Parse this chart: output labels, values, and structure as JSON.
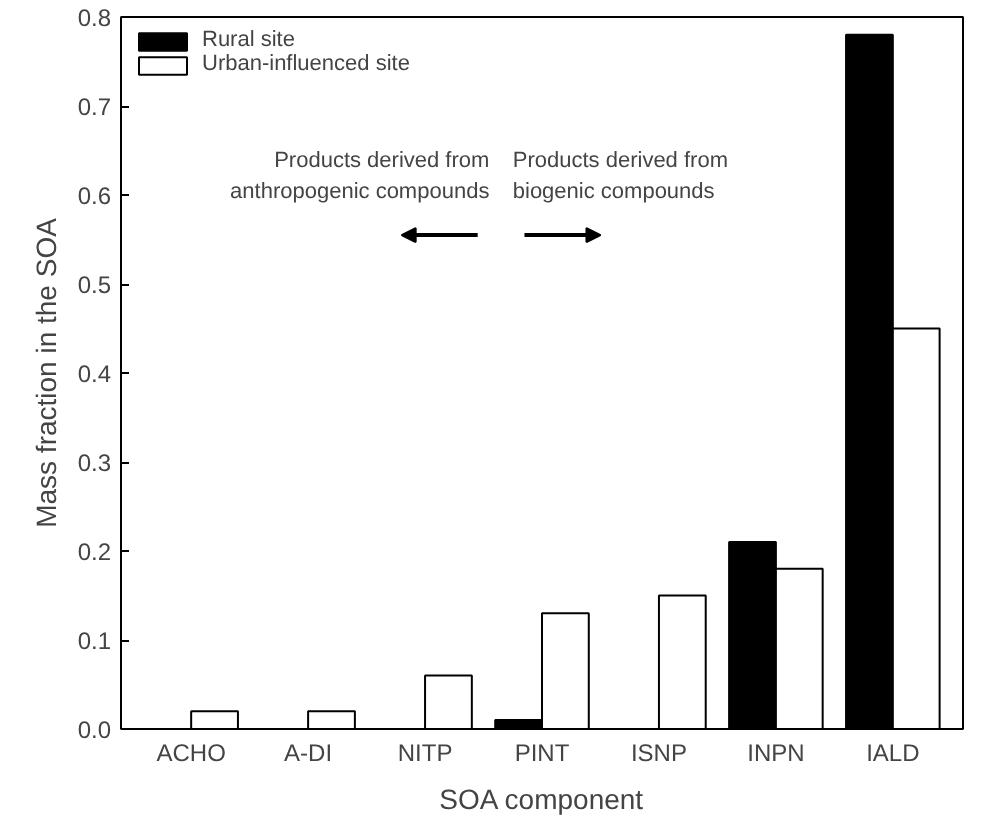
{
  "chart_data": {
    "type": "bar",
    "xlabel": "SOA component",
    "ylabel": "Mass fraction in the SOA",
    "categories": [
      "ACHO",
      "A-DI",
      "NITP",
      "PINT",
      "ISNP",
      "INPN",
      "IALD"
    ],
    "series": [
      {
        "name": "Rural site",
        "color": "#000000",
        "values": [
          0,
          0,
          0,
          0.01,
          0,
          0.21,
          0.78
        ]
      },
      {
        "name": "Urban-influenced site",
        "color": "#ffffff",
        "values": [
          0.02,
          0.02,
          0.06,
          0.13,
          0.15,
          0.18,
          0.45
        ]
      }
    ],
    "ylim": [
      0,
      0.8
    ],
    "yticks": [
      {
        "value": 0,
        "label": "0.0"
      },
      {
        "value": 0.1,
        "label": "0.1"
      },
      {
        "value": 0.2,
        "label": "0.2"
      },
      {
        "value": 0.3,
        "label": "0.3"
      },
      {
        "value": 0.4,
        "label": "0.4"
      },
      {
        "value": 0.5,
        "label": "0.5"
      },
      {
        "value": 0.6,
        "label": "0.6"
      },
      {
        "value": 0.7,
        "label": "0.7"
      },
      {
        "value": 0.8,
        "label": "0.8"
      }
    ],
    "grid": false,
    "legend": "top left",
    "annotations": [
      "Products derived from\nanthropogenic compounds",
      "Products derived from\nbiogenic compounds"
    ]
  }
}
